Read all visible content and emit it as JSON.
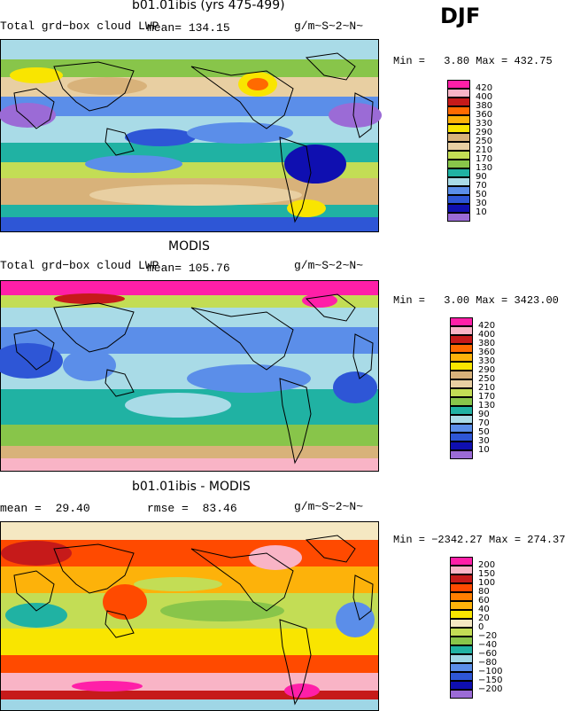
{
  "season": "DJF",
  "palettes": {
    "lwp": [
      "#9b6bd6",
      "#0f0fb0",
      "#2e56d6",
      "#5b8ee9",
      "#a9dbe7",
      "#20b2a3",
      "#88c54a",
      "#c3dd55",
      "#e8cfa2",
      "#d8b27a",
      "#f9e500",
      "#fdb20a",
      "#ff6a00",
      "#c61a1a",
      "#f9b4c6",
      "#ff1fa8"
    ],
    "diff": [
      "#9b6bd6",
      "#0f0fb0",
      "#2e56d6",
      "#5b8ee9",
      "#9fd6e6",
      "#20b2a3",
      "#88c54a",
      "#c3dd55",
      "#f5e8c2",
      "#f9e500",
      "#fdb20a",
      "#ff7f00",
      "#ff4a00",
      "#c61a1a",
      "#f9b4c6",
      "#ff1fa8"
    ],
    "coast": "#000000"
  },
  "chart_data": [
    {
      "type": "heatmap",
      "title": "b01.01ibis (yrs 475-499)",
      "variable": "Total grd−box cloud LWP",
      "mean_label": "mean=",
      "mean": "134.15",
      "units": "g/m~S~2~N~",
      "min_label": "Min =",
      "min": "3.80",
      "max_label": "Max =",
      "max": "432.75",
      "levels": [
        "420",
        "400",
        "380",
        "360",
        "330",
        "290",
        "250",
        "210",
        "170",
        "130",
        "90",
        "70",
        "50",
        "30",
        "10"
      ]
    },
    {
      "type": "heatmap",
      "title": "MODIS",
      "variable": "Total grd−box cloud LWP",
      "mean_label": "mean=",
      "mean": "105.76",
      "units": "g/m~S~2~N~",
      "min_label": "Min =",
      "min": "3.00",
      "max_label": "Max =",
      "max": "3423.00",
      "levels": [
        "420",
        "400",
        "380",
        "360",
        "330",
        "290",
        "250",
        "210",
        "170",
        "130",
        "90",
        "70",
        "50",
        "30",
        "10"
      ]
    },
    {
      "type": "heatmap",
      "title": "b01.01ibis - MODIS",
      "mean_label": "mean =",
      "mean": "29.40",
      "rmse_label": "rmse =",
      "rmse": "83.46",
      "units": "g/m~S~2~N~",
      "min_label": "Min =",
      "min": "−2342.27",
      "max_label": "Max =",
      "max": "274.37",
      "levels": [
        "200",
        "150",
        "100",
        "80",
        "60",
        "40",
        "20",
        "0",
        "−20",
        "−40",
        "−60",
        "−80",
        "−100",
        "−150",
        "−200"
      ]
    }
  ]
}
